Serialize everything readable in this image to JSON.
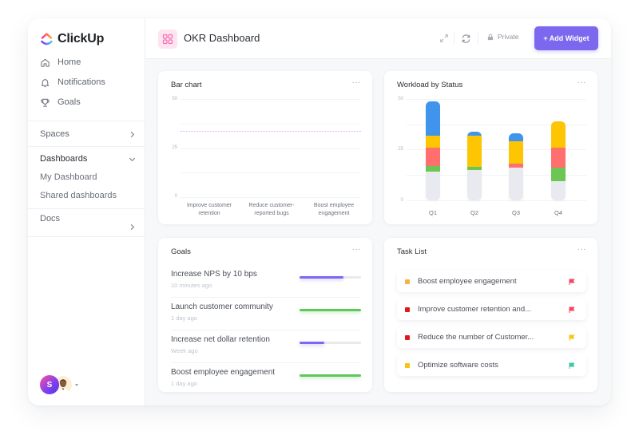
{
  "app": {
    "brand": "ClickUp"
  },
  "sidebar": {
    "nav": [
      {
        "label": "Home",
        "icon": "home-icon"
      },
      {
        "label": "Notifications",
        "icon": "bell-icon"
      },
      {
        "label": "Goals",
        "icon": "trophy-icon"
      }
    ],
    "spaces_label": "Spaces",
    "dashboards_label": "Dashboards",
    "dashboards_items": [
      "My Dashboard",
      "Shared dashboards"
    ],
    "docs_label": "Docs",
    "avatar_initial": "S"
  },
  "header": {
    "title": "OKR Dashboard",
    "private_label": "Private",
    "add_widget_label": "+ Add Widget"
  },
  "widgets": {
    "bar_chart": {
      "title": "Bar chart",
      "more": "···"
    },
    "workload": {
      "title": "Workload by Status",
      "more": "···"
    },
    "goals": {
      "title": "Goals",
      "more": "···",
      "items": [
        {
          "name": "Increase NPS by 10 bps",
          "time": "10 minutes ago",
          "progress": 72,
          "color": "#7b68ee"
        },
        {
          "name": "Launch customer community",
          "time": "1 day ago",
          "progress": 100,
          "color": "#5ec95a"
        },
        {
          "name": "Increase net dollar retention",
          "time": "Week ago",
          "progress": 40,
          "color": "#7b68ee"
        },
        {
          "name": "Boost employee engagement",
          "time": "1 day ago",
          "progress": 100,
          "color": "#5ec95a"
        }
      ]
    },
    "tasks": {
      "title": "Task List",
      "more": "···",
      "items": [
        {
          "name": "Boost employee engagement",
          "status_color": "#f8b43a",
          "flag_color": "#f5455c"
        },
        {
          "name": "Improve customer retention and...",
          "status_color": "#e0181e",
          "flag_color": "#f5455c"
        },
        {
          "name": "Reduce the number of Customer...",
          "status_color": "#e0181e",
          "flag_color": "#f8c513"
        },
        {
          "name": "Optimize software costs",
          "status_color": "#fcc10d",
          "flag_color": "#3dc6a3"
        }
      ]
    }
  },
  "colors": {
    "accent": "#7b68ee",
    "blue": "#4194ec",
    "yellow": "#fec503",
    "red": "#fe6f6e",
    "green": "#6bc653",
    "gray": "#e9eaf0",
    "target_line": "#d9a6f5"
  },
  "chart_data": [
    {
      "type": "bar",
      "title": "Bar chart",
      "categories": [
        "Improve customer retention",
        "Reduce customer-reported bugs",
        "Boost employee engagement"
      ],
      "values": [
        0,
        0,
        0
      ],
      "yticks": [
        0,
        25,
        50
      ],
      "ylim": [
        0,
        50
      ],
      "annotations": [
        {
          "type": "dashed-target-line",
          "y": 33
        }
      ],
      "grid": true,
      "xlabel": "",
      "ylabel": ""
    },
    {
      "type": "bar",
      "stacked": true,
      "title": "Workload by Status",
      "categories": [
        "Q1",
        "Q2",
        "Q3",
        "Q4"
      ],
      "yticks": [
        0,
        25,
        50
      ],
      "ylim": [
        0,
        50
      ],
      "grid": true,
      "xlabel": "",
      "ylabel": "",
      "series": [
        {
          "name": "gray",
          "color": "#e9eaf0",
          "values": [
            14,
            15,
            16,
            9.5
          ]
        },
        {
          "name": "green",
          "color": "#6bc653",
          "values": [
            3,
            1.5,
            0,
            6.5
          ]
        },
        {
          "name": "red",
          "color": "#fe6f6e",
          "values": [
            9,
            0,
            2,
            10
          ]
        },
        {
          "name": "yellow",
          "color": "#fec503",
          "values": [
            6,
            15.5,
            11,
            13
          ]
        },
        {
          "name": "blue",
          "color": "#4194ec",
          "values": [
            17,
            2,
            4,
            0
          ]
        }
      ]
    }
  ]
}
